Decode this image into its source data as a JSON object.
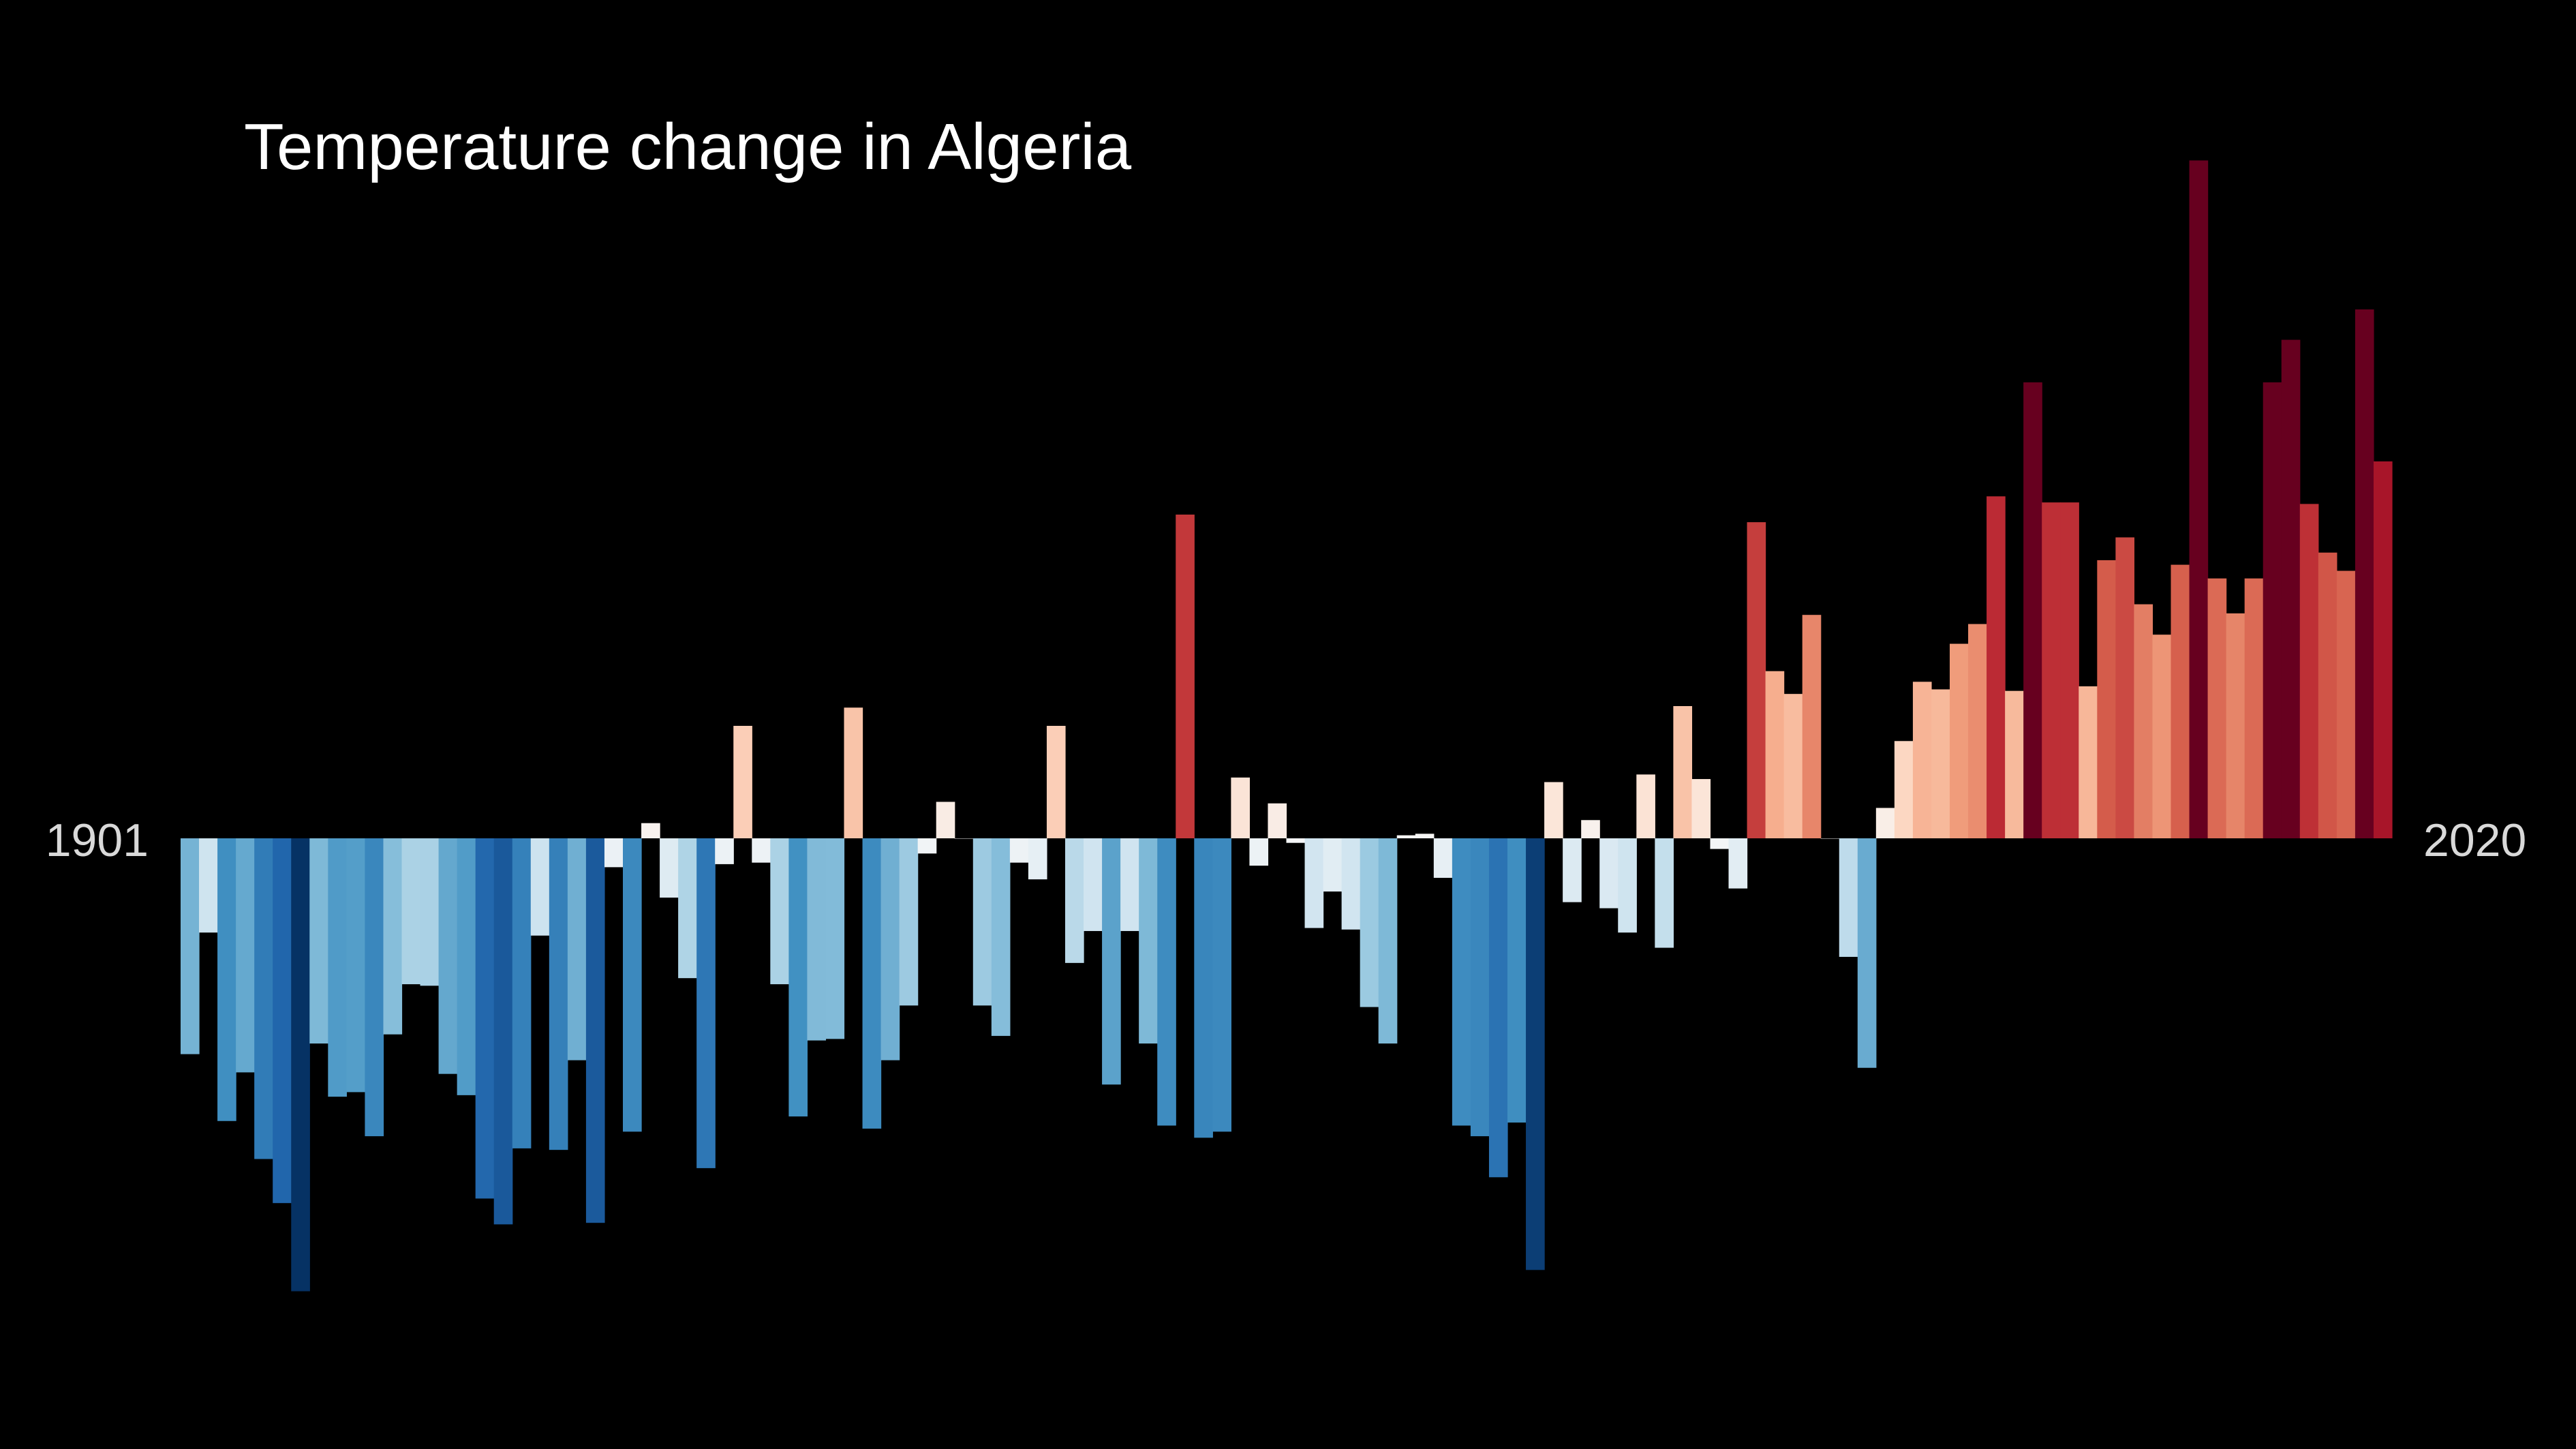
{
  "chart_data": {
    "type": "bar",
    "title": "Temperature change in Algeria",
    "start_year_label": "1901",
    "end_year_label": "2020",
    "x_range": [
      1901,
      2020
    ],
    "y_unit": "anomaly (relative)",
    "ylim": [
      -3.0,
      4.7
    ],
    "grid": false,
    "legend": "none",
    "colors": {
      "background": "#000000",
      "text": "#ffffff",
      "year_label": "#d9d9d9"
    },
    "categories": [
      1901,
      1902,
      1903,
      1904,
      1905,
      1906,
      1907,
      1908,
      1909,
      1910,
      1911,
      1912,
      1913,
      1914,
      1915,
      1916,
      1917,
      1918,
      1919,
      1920,
      1921,
      1922,
      1923,
      1924,
      1925,
      1926,
      1927,
      1928,
      1929,
      1930,
      1931,
      1932,
      1933,
      1934,
      1935,
      1936,
      1937,
      1938,
      1939,
      1940,
      1941,
      1942,
      1943,
      1944,
      1945,
      1946,
      1947,
      1948,
      1949,
      1950,
      1951,
      1952,
      1953,
      1954,
      1955,
      1956,
      1957,
      1958,
      1959,
      1960,
      1961,
      1962,
      1963,
      1964,
      1965,
      1966,
      1967,
      1968,
      1969,
      1970,
      1971,
      1972,
      1973,
      1974,
      1975,
      1976,
      1977,
      1978,
      1979,
      1980,
      1981,
      1982,
      1983,
      1984,
      1985,
      1986,
      1987,
      1988,
      1989,
      1990,
      1991,
      1992,
      1993,
      1994,
      1995,
      1996,
      1997,
      1998,
      1999,
      2000,
      2001,
      2002,
      2003,
      2004,
      2005,
      2006,
      2007,
      2008,
      2009,
      2010,
      2011,
      2012,
      2013,
      2014,
      2015,
      2016,
      2017,
      2018,
      2019,
      2020
    ],
    "values": [
      -1.42,
      -0.62,
      -1.86,
      -1.54,
      -2.11,
      -2.4,
      -2.98,
      -1.35,
      -1.7,
      -1.67,
      -1.96,
      -1.29,
      -0.96,
      -0.97,
      -1.55,
      -1.69,
      -2.37,
      -2.54,
      -2.04,
      -0.64,
      -2.05,
      -1.46,
      -2.53,
      -0.19,
      -1.93,
      0.1,
      -0.39,
      -0.92,
      -2.17,
      -0.17,
      0.74,
      -0.16,
      -0.96,
      -1.83,
      -1.33,
      -1.32,
      0.86,
      -1.91,
      -1.46,
      -1.1,
      -0.1,
      0.24,
      0.0,
      -1.1,
      -1.3,
      -0.16,
      -0.27,
      0.74,
      -0.82,
      -0.61,
      -1.62,
      -0.61,
      -1.35,
      -1.89,
      2.13,
      -1.97,
      -1.93,
      0.4,
      -0.18,
      0.23,
      -0.03,
      -0.59,
      -0.35,
      -0.6,
      -1.11,
      -1.35,
      0.02,
      0.03,
      -0.26,
      -1.89,
      -1.96,
      -2.23,
      -1.87,
      -2.84,
      0.37,
      -0.42,
      0.12,
      -0.46,
      -0.62,
      0.42,
      -0.72,
      0.87,
      0.39,
      -0.07,
      -0.33,
      2.08,
      1.1,
      0.95,
      1.47,
      0.0,
      -0.78,
      -1.51,
      0.2,
      0.64,
      1.03,
      0.98,
      1.28,
      1.41,
      2.25,
      0.97,
      3.0,
      2.21,
      2.21,
      1.0,
      1.83,
      1.98,
      1.54,
      1.34,
      1.8,
      4.46,
      1.71,
      1.48,
      1.71,
      3.0,
      3.28,
      2.2,
      1.88,
      1.76,
      3.48,
      2.48
    ]
  }
}
